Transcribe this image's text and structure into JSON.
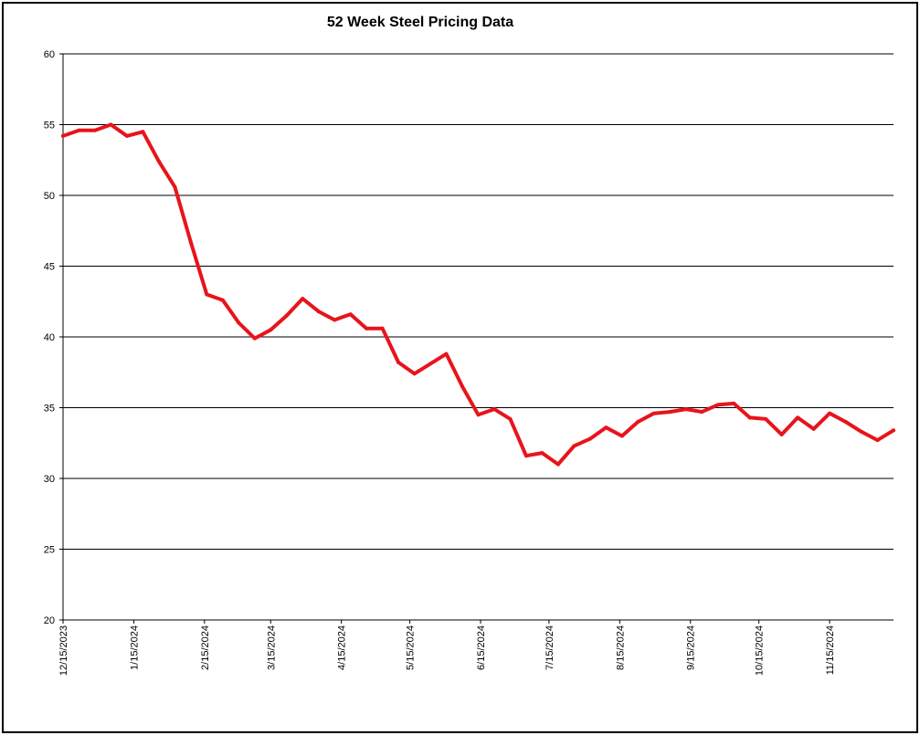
{
  "chart_data": {
    "type": "line",
    "title": "52 Week Steel Pricing Data",
    "xlabel": "",
    "ylabel": "",
    "ylim": [
      20,
      60
    ],
    "yticks": [
      "20",
      "25",
      "30",
      "35",
      "40",
      "45",
      "50",
      "55",
      "60"
    ],
    "grid": true,
    "line_color": "#e8141b",
    "xtick_labels": [
      "12/15/2023",
      "1/15/2024",
      "2/15/2024",
      "3/15/2024",
      "4/15/2024",
      "5/15/2024",
      "6/15/2024",
      "7/15/2024",
      "8/15/2024",
      "9/15/2024",
      "10/15/2024",
      "11/15/2024"
    ],
    "x": [
      "2023-12-15",
      "2023-12-22",
      "2023-12-29",
      "2024-01-05",
      "2024-01-12",
      "2024-01-19",
      "2024-01-26",
      "2024-02-02",
      "2024-02-09",
      "2024-02-16",
      "2024-02-23",
      "2024-03-01",
      "2024-03-08",
      "2024-03-15",
      "2024-03-22",
      "2024-03-29",
      "2024-04-05",
      "2024-04-12",
      "2024-04-19",
      "2024-04-26",
      "2024-05-03",
      "2024-05-10",
      "2024-05-17",
      "2024-05-24",
      "2024-05-31",
      "2024-06-07",
      "2024-06-14",
      "2024-06-21",
      "2024-06-28",
      "2024-07-05",
      "2024-07-12",
      "2024-07-19",
      "2024-07-26",
      "2024-08-02",
      "2024-08-09",
      "2024-08-16",
      "2024-08-23",
      "2024-08-30",
      "2024-09-06",
      "2024-09-13",
      "2024-09-20",
      "2024-09-27",
      "2024-10-04",
      "2024-10-11",
      "2024-10-18",
      "2024-10-25",
      "2024-11-01",
      "2024-11-08",
      "2024-11-15",
      "2024-11-22",
      "2024-11-29",
      "2024-12-06",
      "2024-12-13"
    ],
    "series": [
      {
        "values": [
          54.2,
          54.6,
          54.6,
          55.0,
          54.2,
          54.5,
          52.4,
          50.6,
          46.7,
          43.0,
          42.6,
          41.0,
          39.9,
          40.5,
          41.5,
          42.7,
          41.8,
          41.2,
          41.6,
          40.6,
          40.6,
          38.2,
          37.4,
          38.1,
          38.8,
          36.5,
          34.5,
          34.9,
          34.2,
          31.6,
          31.8,
          31.0,
          32.3,
          32.8,
          33.6,
          33.0,
          34.0,
          34.6,
          34.7,
          34.9,
          34.7,
          35.2,
          35.3,
          34.3,
          34.2,
          33.1,
          34.3,
          33.5,
          34.6,
          34.0,
          33.3,
          32.7,
          33.4
        ]
      }
    ]
  }
}
